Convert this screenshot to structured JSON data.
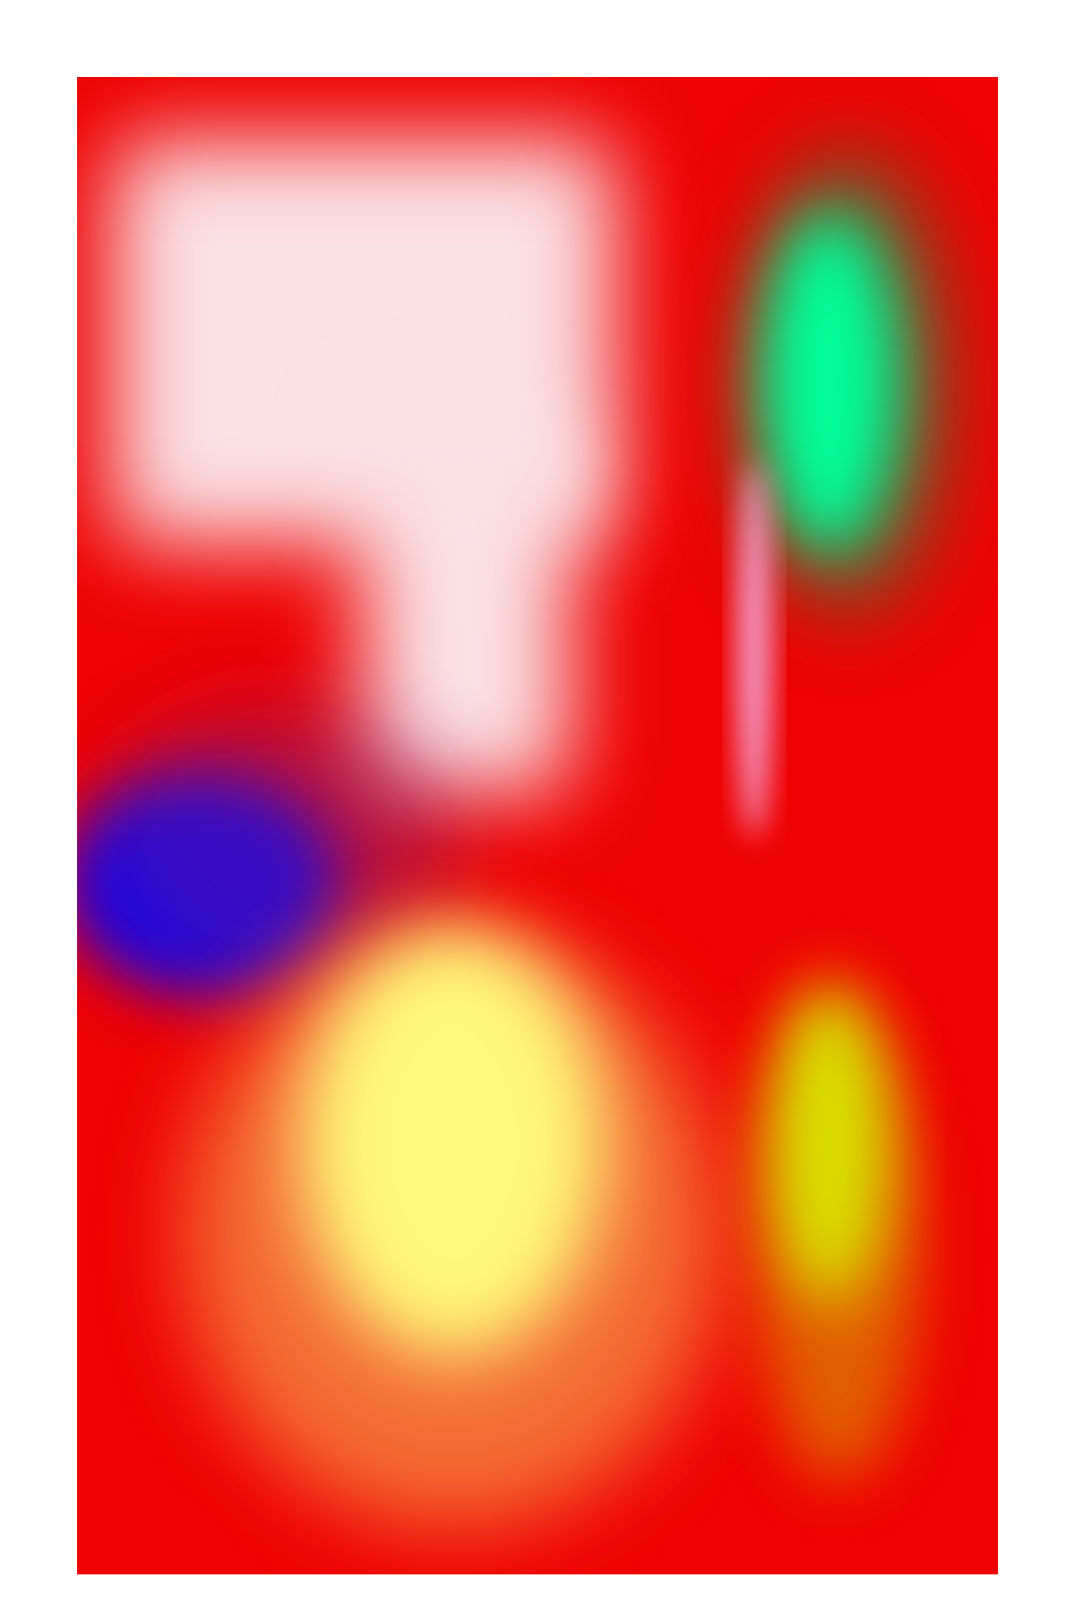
{
  "canvas": {
    "background": "#ffffff",
    "panel_color": "#ee0202"
  },
  "blobs": [
    {
      "id": "pale-pink-upper-region",
      "color": "#fbe0e4"
    },
    {
      "id": "pale-pink-lower-column",
      "color": "#fbe0e4"
    },
    {
      "id": "blue-left-blob",
      "color": "#0000ff"
    },
    {
      "id": "green-top-right-blob",
      "color": "#00ff99"
    },
    {
      "id": "pink-sliver",
      "color": "#f4a6d6"
    },
    {
      "id": "yellow-bottom-center-blob",
      "color": "#fff87a"
    },
    {
      "id": "yellow-bottom-right-blob",
      "color": "#d9e000"
    }
  ]
}
